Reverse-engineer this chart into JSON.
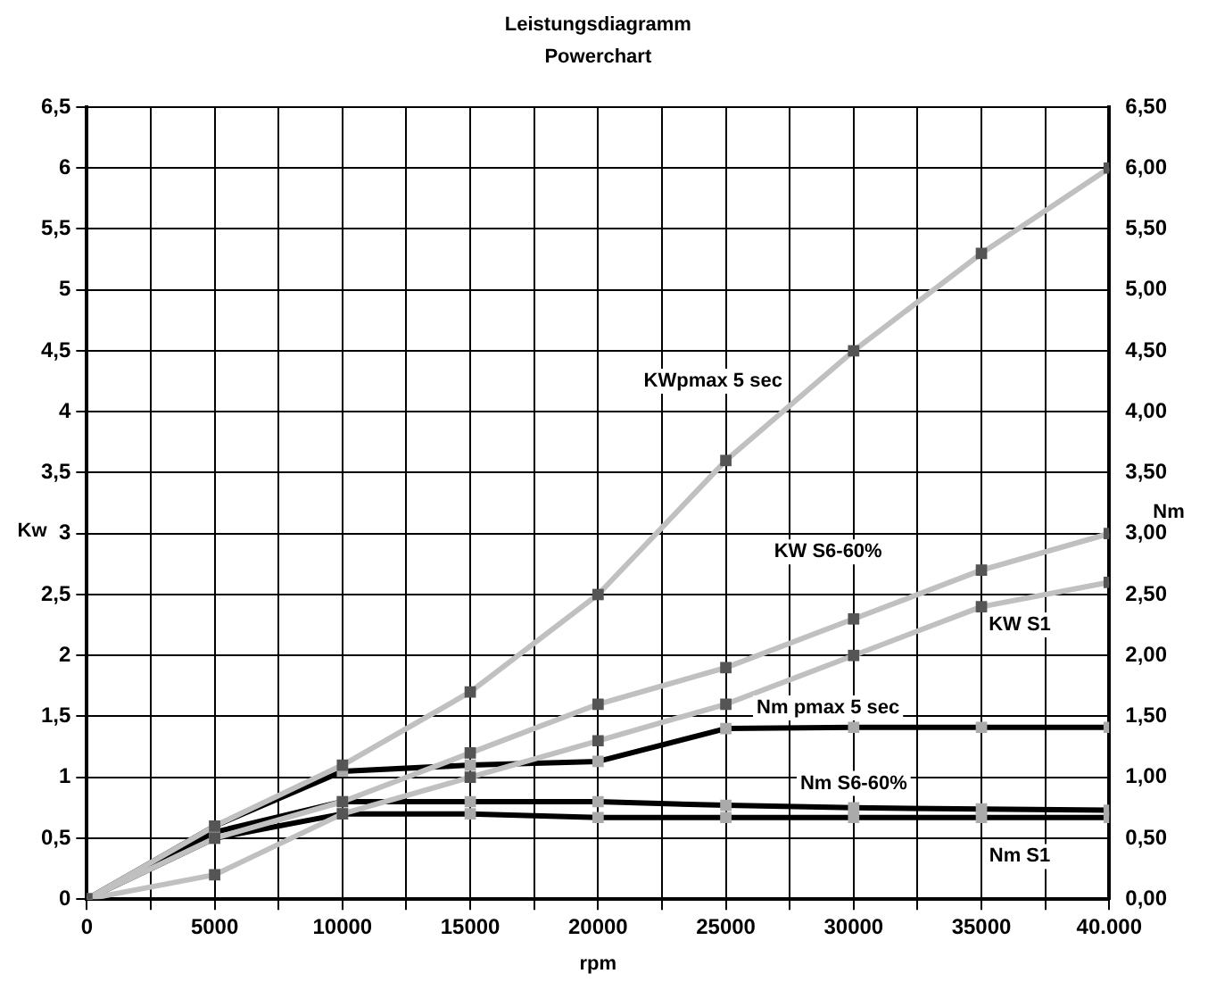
{
  "chart_data": {
    "type": "line",
    "title": "Leistungsdiagramm",
    "subtitle": "Powerchart",
    "xlabel": "rpm",
    "ylabel": "Kw",
    "y2label": "Nm",
    "x": [
      0,
      5000,
      10000,
      15000,
      20000,
      25000,
      30000,
      35000,
      40000
    ],
    "xlim": [
      0,
      40000
    ],
    "xticks": [
      0,
      {
        "value": 2500,
        "label": null
      },
      5000,
      {
        "value": 7500,
        "label": null
      },
      10000,
      {
        "value": 12500,
        "label": null
      },
      15000,
      {
        "value": 17500,
        "label": null
      },
      20000,
      {
        "value": 22500,
        "label": null
      },
      25000,
      {
        "value": 27500,
        "label": null
      },
      30000,
      {
        "value": 32500,
        "label": null
      },
      35000,
      {
        "value": 37500,
        "label": null
      },
      {
        "value": 40000,
        "label": "40.000"
      }
    ],
    "ylim": [
      0,
      6.5
    ],
    "yticks": [
      0,
      {
        "value": 0.5,
        "label": "0,5"
      },
      1,
      {
        "value": 1.5,
        "label": "1,5"
      },
      2,
      {
        "value": 2.5,
        "label": "2,5"
      },
      3,
      {
        "value": 3.5,
        "label": "3,5"
      },
      4,
      {
        "value": 4.5,
        "label": "4,5"
      },
      5,
      {
        "value": 5.5,
        "label": "5,5"
      },
      6,
      {
        "value": 6.5,
        "label": "6,5"
      }
    ],
    "y2lim": [
      0,
      6.5
    ],
    "y2ticks": [
      {
        "value": 0,
        "label": "0,00"
      },
      {
        "value": 0.5,
        "label": "0,50"
      },
      {
        "value": 1,
        "label": "1,00"
      },
      {
        "value": 1.5,
        "label": "1,50"
      },
      {
        "value": 2,
        "label": "2,00"
      },
      {
        "value": 2.5,
        "label": "2,50"
      },
      {
        "value": 3,
        "label": "3,00"
      },
      {
        "value": 3.5,
        "label": "3,50"
      },
      {
        "value": 4,
        "label": "4,00"
      },
      {
        "value": 4.5,
        "label": "4,50"
      },
      {
        "value": 5,
        "label": "5,00"
      },
      {
        "value": 5.5,
        "label": "5,50"
      },
      {
        "value": 6,
        "label": "6,00"
      },
      {
        "value": 6.5,
        "label": "6,50"
      }
    ],
    "series": [
      {
        "name": "KWpmax 5 sec",
        "color": "#c0c0c0",
        "values": [
          0,
          0.6,
          1.1,
          1.7,
          2.5,
          3.6,
          4.5,
          5.3,
          6.0
        ]
      },
      {
        "name": "KW S6-60%",
        "color": "#c0c0c0",
        "values": [
          0,
          0.5,
          0.8,
          1.2,
          1.6,
          1.9,
          2.3,
          2.7,
          3.0
        ]
      },
      {
        "name": "KW S1",
        "color": "#c0c0c0",
        "values": [
          0,
          0.2,
          0.7,
          1.0,
          1.3,
          1.6,
          2.0,
          2.4,
          2.6
        ]
      },
      {
        "name": "Nm pmax 5 sec",
        "color": "#000000",
        "axis": "y2",
        "values": [
          0,
          0.6,
          1.05,
          1.1,
          1.13,
          1.4,
          1.41,
          1.41,
          1.41
        ]
      },
      {
        "name": "Nm S6-60%",
        "color": "#000000",
        "axis": "y2",
        "values": [
          0,
          0.55,
          0.8,
          0.8,
          0.8,
          0.77,
          0.75,
          0.74,
          0.73
        ]
      },
      {
        "name": "Nm S1",
        "color": "#000000",
        "axis": "y2",
        "values": [
          0,
          0.5,
          0.7,
          0.7,
          0.67,
          0.67,
          0.67,
          0.67,
          0.67
        ]
      }
    ],
    "grid": true,
    "legend": false,
    "marker": "square",
    "line_style": "solid"
  }
}
